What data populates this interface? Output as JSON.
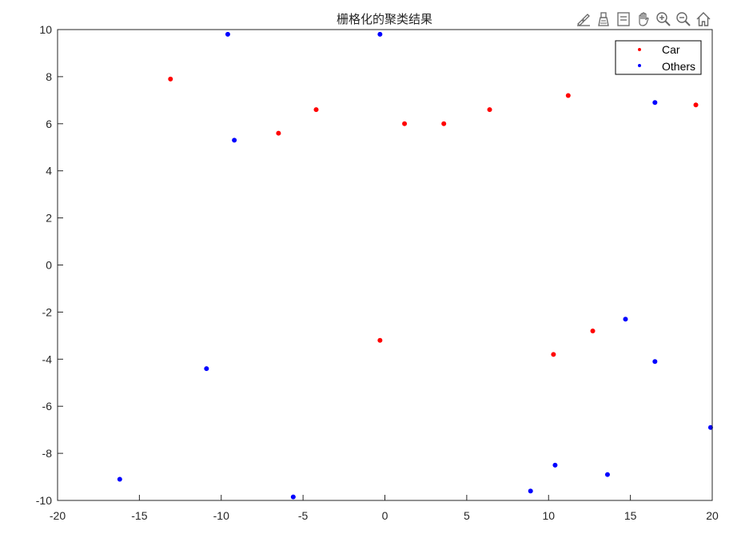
{
  "toolbar": {
    "icons": [
      "brush-data-icon",
      "data-tips-icon",
      "restore-view-icon",
      "pan-icon",
      "zoom-in-icon",
      "zoom-out-icon",
      "home-icon"
    ]
  },
  "colors": {
    "car": "#ff0000",
    "others": "#0000ff",
    "axis": "#262626"
  },
  "chart_data": {
    "type": "scatter",
    "title": "栅格化的聚类结果",
    "xlabel": "",
    "ylabel": "",
    "xlim": [
      -20,
      20
    ],
    "ylim": [
      -10,
      10
    ],
    "xticks": [
      "-20",
      "-15",
      "-10",
      "-5",
      "0",
      "5",
      "10",
      "15",
      "20"
    ],
    "yticks": [
      "10",
      "8",
      "6",
      "4",
      "2",
      "0",
      "-2",
      "-4",
      "-6",
      "-8",
      "-10"
    ],
    "grid": false,
    "legend_position": "top-right",
    "series": [
      {
        "name": "Car",
        "color": "#ff0000",
        "clusters": [
          {
            "x": -13.1,
            "y": 7.9
          },
          {
            "x": -6.5,
            "y": 5.6
          },
          {
            "x": -4.2,
            "y": 6.6
          },
          {
            "x": 1.2,
            "y": 6.0
          },
          {
            "x": 3.6,
            "y": 6.0
          },
          {
            "x": 6.4,
            "y": 6.6
          },
          {
            "x": 11.2,
            "y": 7.2
          },
          {
            "x": 19.0,
            "y": 6.8
          },
          {
            "x": -0.3,
            "y": -3.2
          },
          {
            "x": 10.3,
            "y": -3.8
          },
          {
            "x": 12.7,
            "y": -2.8
          }
        ]
      },
      {
        "name": "Others",
        "color": "#0000ff",
        "clusters": [
          {
            "x": -9.6,
            "y": 9.8
          },
          {
            "x": -0.3,
            "y": 9.8
          },
          {
            "x": -9.2,
            "y": 5.3
          },
          {
            "x": 16.5,
            "y": 6.9
          },
          {
            "x": -10.9,
            "y": -4.4
          },
          {
            "x": 14.7,
            "y": -2.3
          },
          {
            "x": 16.5,
            "y": -4.1
          },
          {
            "x": -16.2,
            "y": -9.1
          },
          {
            "x": -5.6,
            "y": -9.85
          },
          {
            "x": 8.9,
            "y": -9.6
          },
          {
            "x": 10.4,
            "y": -8.5
          },
          {
            "x": 13.6,
            "y": -8.9
          },
          {
            "x": 19.9,
            "y": -6.9
          }
        ]
      }
    ]
  }
}
